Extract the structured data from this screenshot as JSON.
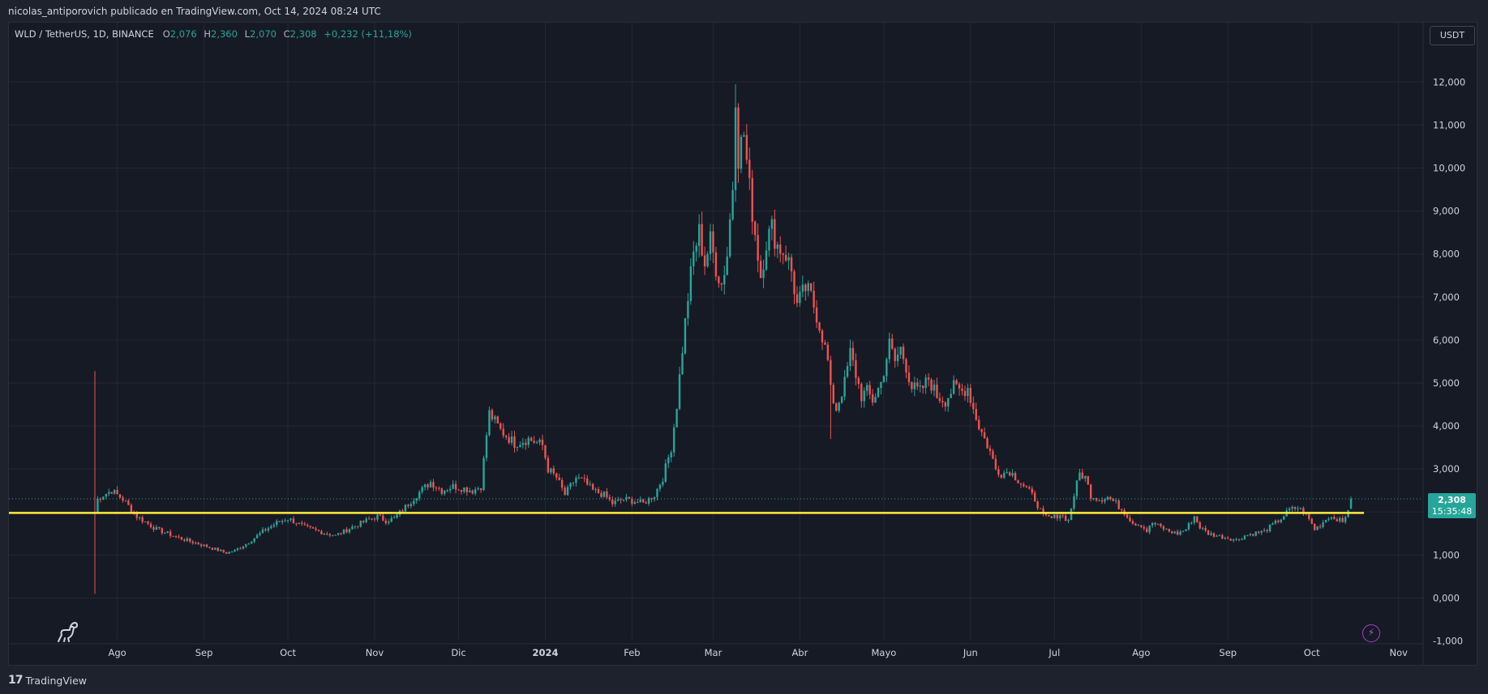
{
  "header": {
    "published_text": "nicolas_antiporovich publicado en TradingView.com, Oct 14, 2024 08:24 UTC"
  },
  "legend": {
    "symbol": "WLD / TetherUS, 1D, BINANCE",
    "open_label": "O",
    "open": "2,076",
    "high_label": "H",
    "high": "2,360",
    "low_label": "L",
    "low": "2,070",
    "close_label": "C",
    "close": "2,308",
    "change": "+0,232 (+11,18%)"
  },
  "toolbar": {
    "currency": "USDT"
  },
  "price_tag": {
    "price": "2,308",
    "countdown": "15:35:48"
  },
  "footer": {
    "logo": "17",
    "brand": "TradingView"
  },
  "icons": {
    "dino": "dino-icon",
    "bolt": "lightning-icon",
    "logo": "tradingview-logo-icon"
  },
  "colors": {
    "up": "#26a69a",
    "down": "#ef5350",
    "line": "#ffeb3b",
    "background": "#161a25"
  },
  "chart_data": {
    "type": "candlestick",
    "ylim": [
      -1.0,
      12.5
    ],
    "y_ticks": [
      "12,000",
      "11,000",
      "10,000",
      "9,000",
      "8,000",
      "7,000",
      "6,000",
      "5,000",
      "4,000",
      "3,000",
      "2,000",
      "1,000",
      "0,000",
      "-1,000"
    ],
    "y_tick_values": [
      12,
      11,
      10,
      9,
      8,
      7,
      6,
      5,
      4,
      3,
      2,
      1,
      0,
      -1
    ],
    "x_ticks": [
      "Ago",
      "Sep",
      "Oct",
      "Nov",
      "Dic",
      "2024",
      "Feb",
      "Mar",
      "Abr",
      "Mayo",
      "Jun",
      "Jul",
      "Ago",
      "Sep",
      "Oct",
      "Nov"
    ],
    "x_tick_days": [
      8,
      39,
      69,
      100,
      130,
      161,
      192,
      221,
      252,
      282,
      313,
      343,
      374,
      405,
      435,
      466
    ],
    "horizontal_line": 1.98,
    "last_price": 2.308,
    "anchors": [
      [
        0,
        2.0
      ],
      [
        1,
        2.3
      ],
      [
        3,
        2.4
      ],
      [
        6,
        2.5
      ],
      [
        10,
        2.3
      ],
      [
        15,
        1.9
      ],
      [
        22,
        1.6
      ],
      [
        30,
        1.4
      ],
      [
        40,
        1.2
      ],
      [
        47,
        1.05
      ],
      [
        50,
        1.1
      ],
      [
        55,
        1.3
      ],
      [
        60,
        1.55
      ],
      [
        65,
        1.75
      ],
      [
        69,
        1.85
      ],
      [
        75,
        1.65
      ],
      [
        80,
        1.55
      ],
      [
        86,
        1.45
      ],
      [
        92,
        1.65
      ],
      [
        97,
        1.8
      ],
      [
        101,
        1.9
      ],
      [
        104,
        1.8
      ],
      [
        107,
        1.85
      ],
      [
        110,
        2.05
      ],
      [
        115,
        2.4
      ],
      [
        120,
        2.7
      ],
      [
        124,
        2.5
      ],
      [
        128,
        2.6
      ],
      [
        132,
        2.55
      ],
      [
        135,
        2.5
      ],
      [
        138,
        2.6
      ],
      [
        140,
        3.8
      ],
      [
        141,
        4.3
      ],
      [
        145,
        3.9
      ],
      [
        150,
        3.6
      ],
      [
        155,
        3.7
      ],
      [
        160,
        3.55
      ],
      [
        162,
        3.0
      ],
      [
        165,
        2.8
      ],
      [
        168,
        2.4
      ],
      [
        172,
        2.8
      ],
      [
        175,
        2.7
      ],
      [
        178,
        2.5
      ],
      [
        182,
        2.4
      ],
      [
        185,
        2.2
      ],
      [
        189,
        2.3
      ],
      [
        193,
        2.25
      ],
      [
        196,
        2.2
      ],
      [
        200,
        2.4
      ],
      [
        203,
        2.8
      ],
      [
        206,
        3.5
      ],
      [
        208,
        4.5
      ],
      [
        210,
        5.8
      ],
      [
        212,
        7.0
      ],
      [
        214,
        8.0
      ],
      [
        216,
        8.5
      ],
      [
        218,
        7.8
      ],
      [
        220,
        8.3
      ],
      [
        222,
        7.7
      ],
      [
        224,
        7.3
      ],
      [
        226,
        8.0
      ],
      [
        228,
        9.6
      ],
      [
        229,
        11.8
      ],
      [
        230,
        10.3
      ],
      [
        232,
        10.8
      ],
      [
        234,
        9.5
      ],
      [
        236,
        8.5
      ],
      [
        238,
        7.5
      ],
      [
        240,
        8.3
      ],
      [
        242,
        8.6
      ],
      [
        244,
        8.2
      ],
      [
        247,
        8.0
      ],
      [
        249,
        7.6
      ],
      [
        251,
        6.8
      ],
      [
        254,
        7.2
      ],
      [
        256,
        7.0
      ],
      [
        258,
        6.6
      ],
      [
        260,
        6.1
      ],
      [
        262,
        5.5
      ],
      [
        263,
        4.8
      ],
      [
        265,
        4.4
      ],
      [
        268,
        5.0
      ],
      [
        270,
        5.7
      ],
      [
        272,
        5.2
      ],
      [
        274,
        4.7
      ],
      [
        276,
        4.8
      ],
      [
        278,
        4.6
      ],
      [
        281,
        5.0
      ],
      [
        284,
        5.9
      ],
      [
        286,
        5.5
      ],
      [
        288,
        5.8
      ],
      [
        290,
        5.4
      ],
      [
        292,
        4.9
      ],
      [
        295,
        4.8
      ],
      [
        298,
        5.1
      ],
      [
        301,
        4.7
      ],
      [
        304,
        4.6
      ],
      [
        307,
        4.9
      ],
      [
        310,
        4.8
      ],
      [
        312,
        4.9
      ],
      [
        314,
        4.4
      ],
      [
        316,
        4.0
      ],
      [
        318,
        3.7
      ],
      [
        320,
        3.4
      ],
      [
        322,
        3.0
      ],
      [
        324,
        2.9
      ],
      [
        327,
        2.95
      ],
      [
        330,
        2.75
      ],
      [
        333,
        2.55
      ],
      [
        336,
        2.3
      ],
      [
        339,
        1.9
      ],
      [
        342,
        1.85
      ],
      [
        345,
        1.95
      ],
      [
        348,
        1.8
      ],
      [
        350,
        2.4
      ],
      [
        352,
        2.9
      ],
      [
        354,
        2.8
      ],
      [
        356,
        2.4
      ],
      [
        359,
        2.3
      ],
      [
        362,
        2.35
      ],
      [
        365,
        2.2
      ],
      [
        368,
        2.0
      ],
      [
        371,
        1.75
      ],
      [
        374,
        1.7
      ],
      [
        376,
        1.55
      ],
      [
        378,
        1.75
      ],
      [
        381,
        1.65
      ],
      [
        384,
        1.55
      ],
      [
        387,
        1.5
      ],
      [
        390,
        1.6
      ],
      [
        393,
        1.9
      ],
      [
        395,
        1.65
      ],
      [
        398,
        1.5
      ],
      [
        401,
        1.45
      ],
      [
        405,
        1.4
      ],
      [
        408,
        1.35
      ],
      [
        411,
        1.45
      ],
      [
        414,
        1.5
      ],
      [
        418,
        1.55
      ],
      [
        421,
        1.7
      ],
      [
        424,
        1.85
      ],
      [
        427,
        2.05
      ],
      [
        430,
        2.1
      ],
      [
        433,
        1.95
      ],
      [
        436,
        1.6
      ],
      [
        438,
        1.7
      ],
      [
        441,
        1.9
      ],
      [
        444,
        1.85
      ],
      [
        446,
        1.75
      ],
      [
        448,
        2.08
      ],
      [
        449,
        2.308
      ]
    ]
  }
}
